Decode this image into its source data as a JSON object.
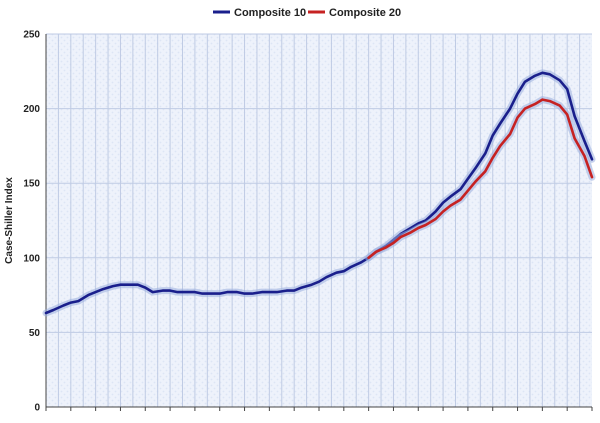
{
  "chart_data": {
    "type": "line",
    "title": "",
    "xlabel": "",
    "ylabel": "Case-Shiller Index",
    "ylim": [
      0,
      250
    ],
    "yticks": [
      0,
      50,
      100,
      150,
      200,
      250
    ],
    "x_range": [
      1987,
      2009
    ],
    "grid": true,
    "legend_position": "top-center",
    "series": [
      {
        "name": "Composite 10",
        "color": "#1a1f8c",
        "x": [
          1987.0,
          1987.3,
          1987.7,
          1988.0,
          1988.3,
          1988.7,
          1989.0,
          1989.3,
          1989.7,
          1990.0,
          1990.3,
          1990.7,
          1991.0,
          1991.3,
          1991.7,
          1992.0,
          1992.3,
          1992.7,
          1993.0,
          1993.3,
          1993.7,
          1994.0,
          1994.3,
          1994.7,
          1995.0,
          1995.3,
          1995.7,
          1996.0,
          1996.3,
          1996.7,
          1997.0,
          1997.3,
          1997.7,
          1998.0,
          1998.3,
          1998.7,
          1999.0,
          1999.3,
          1999.7,
          2000.0,
          2000.3,
          2000.7,
          2001.0,
          2001.3,
          2001.7,
          2002.0,
          2002.3,
          2002.7,
          2003.0,
          2003.3,
          2003.7,
          2004.0,
          2004.3,
          2004.7,
          2005.0,
          2005.3,
          2005.7,
          2006.0,
          2006.3,
          2006.7,
          2007.0,
          2007.3,
          2007.7,
          2008.0,
          2008.3,
          2008.7,
          2009.0
        ],
        "values": [
          63,
          65,
          68,
          70,
          71,
          75,
          77,
          79,
          81,
          82,
          82,
          82,
          80,
          77,
          78,
          78,
          77,
          77,
          77,
          76,
          76,
          76,
          77,
          77,
          76,
          76,
          77,
          77,
          77,
          78,
          78,
          80,
          82,
          84,
          87,
          90,
          91,
          94,
          97,
          100,
          104,
          108,
          112,
          116,
          120,
          123,
          125,
          131,
          137,
          141,
          146,
          153,
          160,
          170,
          182,
          190,
          200,
          210,
          218,
          222,
          224,
          223,
          219,
          213,
          195,
          178,
          166
        ]
      },
      {
        "name": "Composite 20",
        "color": "#c62222",
        "x": [
          2000.0,
          2000.3,
          2000.7,
          2001.0,
          2001.3,
          2001.7,
          2002.0,
          2002.3,
          2002.7,
          2003.0,
          2003.3,
          2003.7,
          2004.0,
          2004.3,
          2004.7,
          2005.0,
          2005.3,
          2005.7,
          2006.0,
          2006.3,
          2006.7,
          2007.0,
          2007.3,
          2007.7,
          2008.0,
          2008.3,
          2008.7,
          2009.0
        ],
        "values": [
          100,
          104,
          107,
          110,
          114,
          117,
          120,
          122,
          126,
          131,
          135,
          139,
          145,
          151,
          158,
          167,
          175,
          183,
          194,
          200,
          203,
          206,
          205,
          202,
          196,
          180,
          168,
          154
        ]
      }
    ]
  }
}
